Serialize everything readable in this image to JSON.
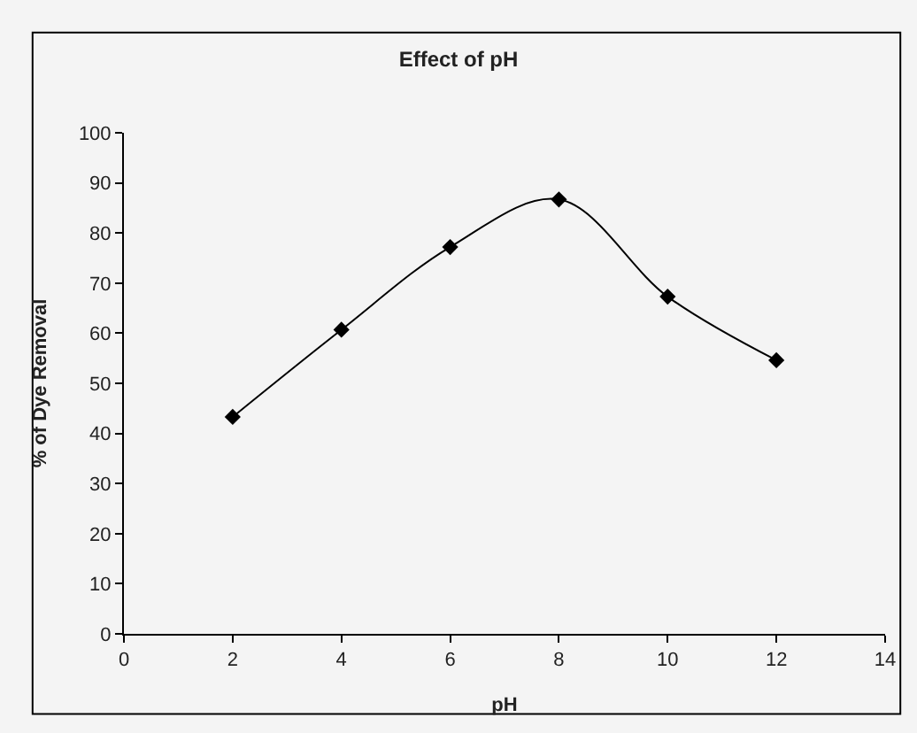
{
  "chart_data": {
    "type": "line",
    "title": "Effect of pH",
    "xlabel": "pH",
    "ylabel": "% of Dye Removal",
    "x": [
      2,
      4,
      6,
      8,
      10,
      12
    ],
    "series": [
      {
        "color": "#000000",
        "values": [
          43.3,
          60.7,
          77.2,
          86.7,
          67.3,
          54.6
        ]
      }
    ],
    "xlim": [
      0,
      14
    ],
    "xticks": [
      0,
      2,
      4,
      6,
      8,
      10,
      12,
      14
    ],
    "ylim": [
      0,
      100
    ],
    "yticks": [
      0,
      10,
      20,
      30,
      40,
      50,
      60,
      70,
      80,
      90,
      100
    ],
    "grid": false,
    "legend": false,
    "marker": "diamond",
    "line_style": "solid"
  }
}
